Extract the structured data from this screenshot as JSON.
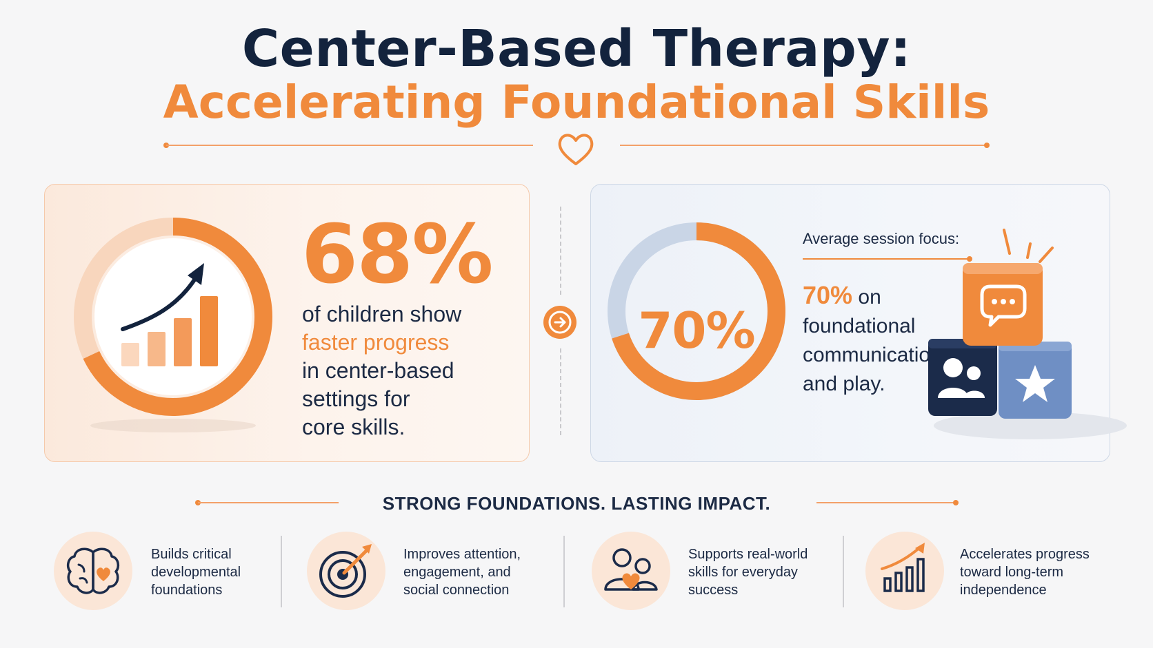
{
  "header": {
    "title_line1": "Center-Based Therapy:",
    "title_line2": "Accelerating Foundational Skills"
  },
  "colors": {
    "accent_orange": "#f08a3c",
    "navy": "#13233d",
    "slate_blue": "#6f8fc4",
    "ring_track_left": "#f8d6bd",
    "ring_track_right": "#c9d5e6"
  },
  "stat_left": {
    "value": "68%",
    "progress": 0.68,
    "text_before": "of children show",
    "highlight": "faster progress",
    "text_after_1": "in center-based",
    "text_after_2": "settings for",
    "text_after_3": "core skills."
  },
  "stat_right": {
    "value": "70%",
    "progress": 0.7,
    "label": "Average session focus:",
    "pct_text": "70%",
    "on_text": "on",
    "line2": "foundational",
    "line3": "communication",
    "line4": "and play."
  },
  "tagline": "STRONG FOUNDATIONS. LASTING IMPACT.",
  "features": [
    {
      "icon": "brain-heart-icon",
      "line1": "Builds critical",
      "line2": "developmental",
      "line3": "foundations"
    },
    {
      "icon": "target-icon",
      "line1": "Improves attention,",
      "line2": "engagement, and",
      "line3": "social connection"
    },
    {
      "icon": "people-heart-icon",
      "line1": "Supports real-world",
      "line2": "skills for everyday",
      "line3": "success"
    },
    {
      "icon": "growth-chart-icon",
      "line1": "Accelerates progress",
      "line2": "toward long-term",
      "line3": "independence"
    }
  ]
}
